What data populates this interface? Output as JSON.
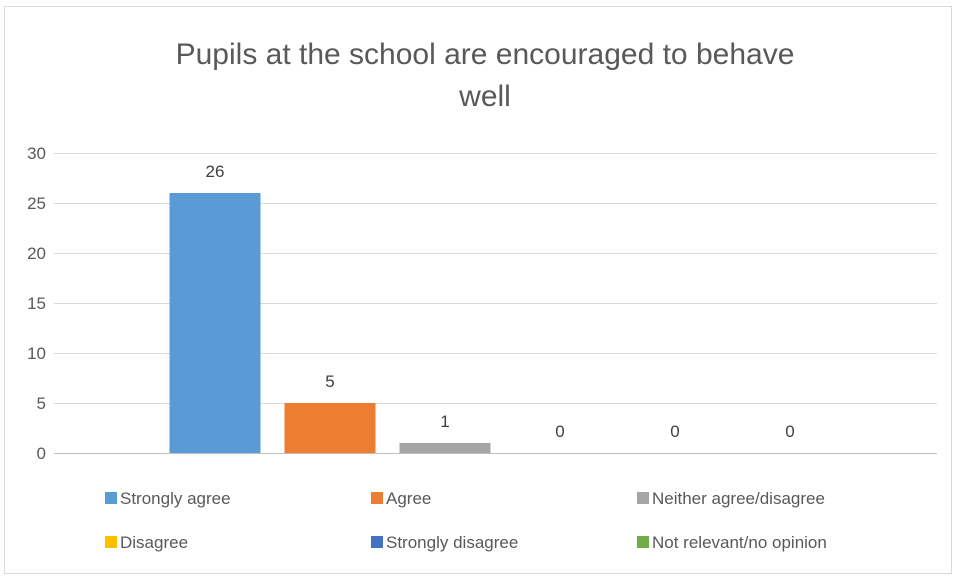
{
  "chart_data": {
    "type": "bar",
    "title_lines": [
      "Pupils at the school are encouraged to behave",
      "well"
    ],
    "categories": [
      "Strongly agree",
      "Agree",
      "Neither agree/disagree",
      "Disagree",
      "Strongly disagree",
      "Not relevant/no opinion"
    ],
    "values": [
      26,
      5,
      1,
      0,
      0,
      0
    ],
    "colors": [
      "#5b9bd5",
      "#ed7d31",
      "#a5a5a5",
      "#ffc000",
      "#4472c4",
      "#70ad47"
    ],
    "ylim": [
      0,
      30
    ],
    "yticks": [
      0,
      5,
      10,
      15,
      20,
      25,
      30
    ],
    "grid": true,
    "legend_position": "bottom"
  }
}
